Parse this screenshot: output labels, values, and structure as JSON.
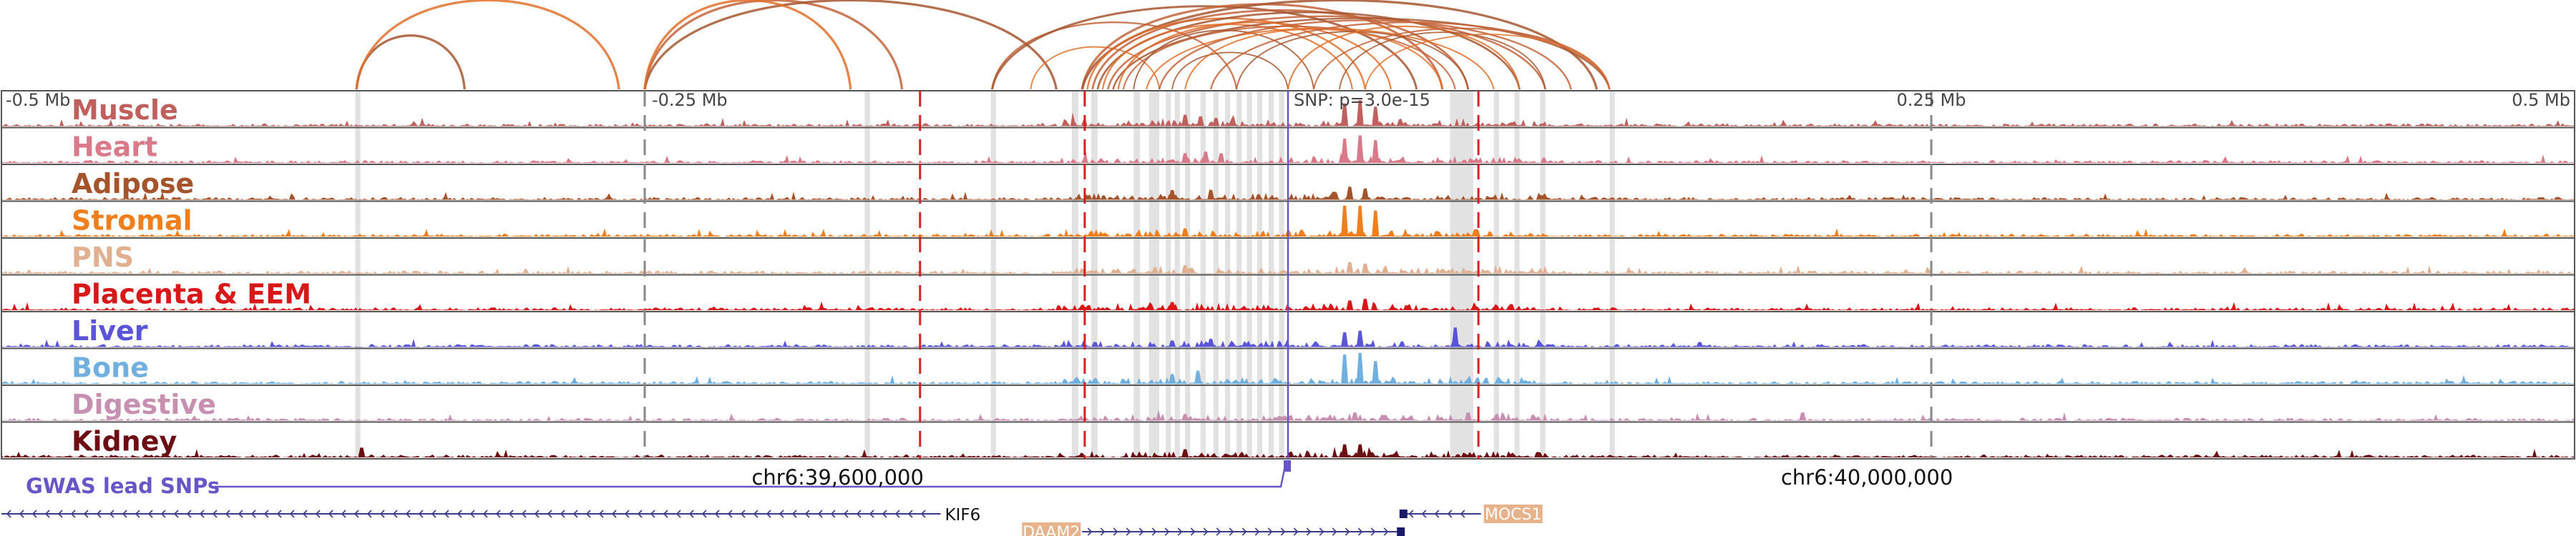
{
  "chart_data": {
    "type": "area",
    "x_unit": "Mb relative to lead SNP",
    "xlim": [
      -0.5,
      0.5
    ],
    "top_axis_ticks": [
      {
        "value": -0.5,
        "label": "-0.5 Mb"
      },
      {
        "value": -0.25,
        "label": "-0.25 Mb"
      },
      {
        "value": 0.0,
        "label": "SNP: p=3.0e-15"
      },
      {
        "value": 0.25,
        "label": "0.25 Mb"
      },
      {
        "value": 0.5,
        "label": "0.5 Mb"
      }
    ],
    "dashed_gray_lines": [
      -0.25,
      0.25
    ],
    "dashed_red_lines": [
      -0.143,
      -0.079,
      0.074
    ],
    "highlight_bands": [
      {
        "x0": -0.3625,
        "x1": -0.3605
      },
      {
        "x0": -0.1645,
        "x1": -0.1625
      },
      {
        "x0": -0.1155,
        "x1": -0.1135
      },
      {
        "x0": -0.084,
        "x1": -0.0815
      },
      {
        "x0": -0.0765,
        "x1": -0.074
      },
      {
        "x0": -0.06,
        "x1": -0.0575
      },
      {
        "x0": -0.054,
        "x1": -0.05
      },
      {
        "x0": -0.0475,
        "x1": -0.0455
      },
      {
        "x0": -0.044,
        "x1": -0.042
      },
      {
        "x0": -0.04,
        "x1": -0.038
      },
      {
        "x0": -0.034,
        "x1": -0.032
      },
      {
        "x0": -0.029,
        "x1": -0.027
      },
      {
        "x0": -0.0245,
        "x1": -0.0225
      },
      {
        "x0": -0.02,
        "x1": -0.018
      },
      {
        "x0": -0.016,
        "x1": -0.014
      },
      {
        "x0": -0.012,
        "x1": -0.01
      },
      {
        "x0": -0.0075,
        "x1": -0.0055
      },
      {
        "x0": -0.0035,
        "x1": -0.0015
      },
      {
        "x0": 0.063,
        "x1": 0.072
      },
      {
        "x0": 0.08,
        "x1": 0.082
      },
      {
        "x0": 0.088,
        "x1": 0.09
      },
      {
        "x0": 0.098,
        "x1": 0.1
      },
      {
        "x0": 0.125,
        "x1": 0.127
      }
    ],
    "tracks": [
      {
        "name": "Muscle",
        "color": "#c0605e",
        "peaks": [
          [
            -0.04,
            0.35
          ],
          [
            -0.034,
            0.3
          ],
          [
            -0.028,
            0.25
          ],
          [
            0.022,
            0.7
          ],
          [
            0.028,
            0.8
          ],
          [
            0.034,
            0.6
          ]
        ]
      },
      {
        "name": "Heart",
        "color": "#d97a8a",
        "peaks": [
          [
            -0.04,
            0.3
          ],
          [
            -0.032,
            0.35
          ],
          [
            -0.026,
            0.3
          ],
          [
            0.022,
            0.75
          ],
          [
            0.028,
            0.85
          ],
          [
            0.034,
            0.7
          ]
        ]
      },
      {
        "name": "Adipose",
        "color": "#a5532b",
        "peaks": [
          [
            -0.045,
            0.3
          ],
          [
            -0.03,
            0.3
          ],
          [
            0.024,
            0.4
          ],
          [
            0.03,
            0.35
          ]
        ]
      },
      {
        "name": "Stromal",
        "color": "#f07e1a",
        "peaks": [
          [
            -0.04,
            0.25
          ],
          [
            0.022,
            0.95
          ],
          [
            0.028,
            0.95
          ],
          [
            0.034,
            0.8
          ]
        ]
      },
      {
        "name": "PNS",
        "color": "#e0b090",
        "peaks": [
          [
            -0.04,
            0.25
          ],
          [
            0.024,
            0.35
          ],
          [
            0.03,
            0.3
          ]
        ]
      },
      {
        "name": "Placenta & EEM",
        "color": "#d81818",
        "peaks": [
          [
            -0.045,
            0.25
          ],
          [
            0.024,
            0.3
          ],
          [
            0.03,
            0.35
          ]
        ]
      },
      {
        "name": "Liver",
        "color": "#5a55d8",
        "peaks": [
          [
            -0.075,
            0.15
          ],
          [
            -0.045,
            0.2
          ],
          [
            -0.03,
            0.25
          ],
          [
            0.022,
            0.45
          ],
          [
            0.028,
            0.5
          ],
          [
            0.065,
            0.6
          ],
          [
            0.16,
            0.15
          ]
        ]
      },
      {
        "name": "Bone",
        "color": "#70b0e0",
        "peaks": [
          [
            -0.045,
            0.3
          ],
          [
            -0.035,
            0.4
          ],
          [
            0.022,
            0.9
          ],
          [
            0.028,
            0.95
          ],
          [
            0.034,
            0.7
          ]
        ]
      },
      {
        "name": "Digestive",
        "color": "#c890b0",
        "peaks": [
          [
            -0.04,
            0.2
          ],
          [
            0.026,
            0.25
          ],
          [
            0.07,
            0.25
          ],
          [
            0.2,
            0.25
          ]
        ]
      },
      {
        "name": "Kidney",
        "color": "#6b0d12",
        "peaks": [
          [
            -0.36,
            0.3
          ],
          [
            -0.04,
            0.25
          ],
          [
            0.022,
            0.4
          ],
          [
            0.028,
            0.4
          ]
        ]
      }
    ],
    "arcs": [
      {
        "x0": -0.362,
        "x1": -0.32,
        "h": 1.0
      },
      {
        "x0": -0.362,
        "x1": -0.26,
        "h": 1.0
      },
      {
        "x0": -0.25,
        "x1": -0.15,
        "h": 1.0
      },
      {
        "x0": -0.25,
        "x1": -0.09,
        "h": 1.0
      },
      {
        "x0": -0.25,
        "x1": -0.17,
        "h": 1.0
      },
      {
        "x0": -0.115,
        "x1": -0.02,
        "h": 0.45
      },
      {
        "x0": -0.115,
        "x1": 0.05,
        "h": 0.85
      },
      {
        "x0": -0.1,
        "x1": -0.05,
        "h": 0.25
      },
      {
        "x0": -0.08,
        "x1": 0.06,
        "h": 0.9
      },
      {
        "x0": -0.08,
        "x1": 0.12,
        "h": 1.0
      },
      {
        "x0": -0.078,
        "x1": 0.03,
        "h": 0.55
      },
      {
        "x0": -0.076,
        "x1": 0.07,
        "h": 0.75
      },
      {
        "x0": -0.074,
        "x1": 0.09,
        "h": 0.7
      },
      {
        "x0": -0.072,
        "x1": 0.025,
        "h": 0.4
      },
      {
        "x0": -0.07,
        "x1": 0.1,
        "h": 0.6
      },
      {
        "x0": -0.068,
        "x1": 0.125,
        "h": 0.55
      },
      {
        "x0": -0.066,
        "x1": 0.04,
        "h": 0.45
      },
      {
        "x0": -0.064,
        "x1": 0.065,
        "h": 0.35
      },
      {
        "x0": -0.06,
        "x1": 0.01,
        "h": 0.25
      },
      {
        "x0": -0.055,
        "x1": 0.08,
        "h": 0.3
      },
      {
        "x0": -0.05,
        "x1": 0.11,
        "h": 0.5
      },
      {
        "x0": -0.045,
        "x1": 0.0,
        "h": 0.2
      },
      {
        "x0": -0.04,
        "x1": 0.06,
        "h": 0.28
      },
      {
        "x0": -0.03,
        "x1": 0.125,
        "h": 0.45
      },
      {
        "x0": -0.02,
        "x1": 0.07,
        "h": 0.22
      },
      {
        "x0": 0.0,
        "x1": 0.09,
        "h": 0.35
      },
      {
        "x0": 0.01,
        "x1": 0.125,
        "h": 0.3
      },
      {
        "x0": 0.02,
        "x1": 0.1,
        "h": 0.2
      },
      {
        "x0": 0.03,
        "x1": 0.125,
        "h": 0.15
      }
    ],
    "gwas": {
      "label": "GWAS lead SNPs",
      "color": "#6a55c8",
      "snp_x": 0.0
    },
    "coordinate_labels": [
      {
        "value": -0.175,
        "label": "chr6:39,600,000"
      },
      {
        "value": 0.225,
        "label": "chr6:40,000,000"
      }
    ],
    "genes": [
      {
        "name": "KIF6",
        "start": -0.5,
        "end": -0.135,
        "strand": "-",
        "row": 0,
        "label_style": "text"
      },
      {
        "name": "DAAM2",
        "start": -0.08,
        "end": 0.044,
        "strand": "+",
        "row": 1,
        "label_style": "box"
      },
      {
        "name": "MOCS1",
        "start": 0.045,
        "end": 0.075,
        "strand": "-",
        "row": 0,
        "label_style": "box"
      }
    ]
  }
}
